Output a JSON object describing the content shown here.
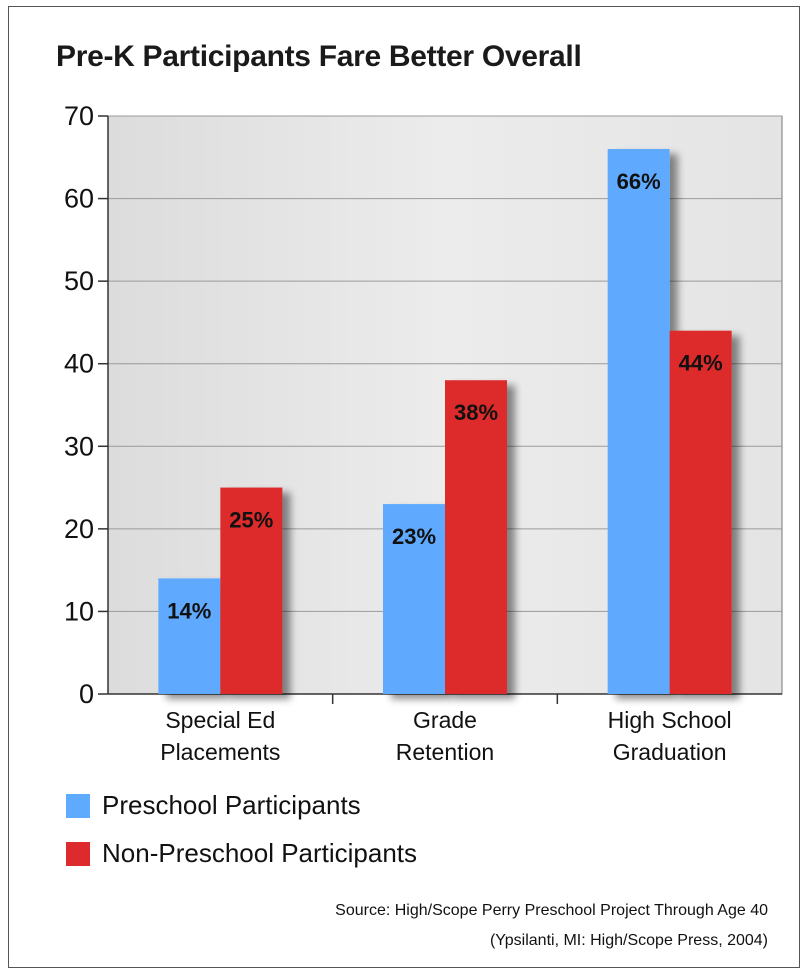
{
  "title": "Pre-K Participants Fare Better Overall",
  "colors": {
    "preschool": "#5eaaff",
    "non_preschool": "#dd2a2c",
    "plot_bg": "#e8e8e8"
  },
  "legend": [
    {
      "label": "Preschool Participants",
      "color": "#5eaaff"
    },
    {
      "label": "Non-Preschool Participants",
      "color": "#dd2a2c"
    }
  ],
  "source": {
    "line1": "Source: High/Scope Perry Preschool Project Through Age 40",
    "line2": "(Ypsilanti, MI: High/Scope Press, 2004)"
  },
  "chart_data": {
    "type": "bar",
    "title": "Pre-K Participants Fare Better Overall",
    "categories": [
      [
        "Special Ed",
        "Placements"
      ],
      [
        "Grade",
        "Retention"
      ],
      [
        "High School",
        "Graduation"
      ]
    ],
    "series": [
      {
        "name": "Preschool Participants",
        "values": [
          14,
          23,
          66
        ],
        "labels": [
          "14%",
          "23%",
          "66%"
        ]
      },
      {
        "name": "Non-Preschool Participants",
        "values": [
          25,
          38,
          44
        ],
        "labels": [
          "25%",
          "38%",
          "44%"
        ]
      }
    ],
    "ylim": [
      0,
      70
    ],
    "yticks": [
      0,
      10,
      20,
      30,
      40,
      50,
      60,
      70
    ],
    "grid": true,
    "legend_position": "bottom-left"
  }
}
